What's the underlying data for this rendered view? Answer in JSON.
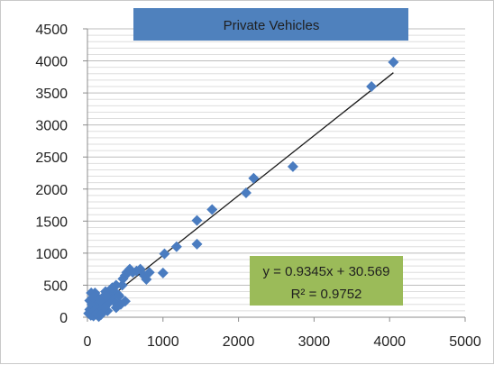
{
  "chart_data": {
    "type": "scatter",
    "title": "Private Vehicles",
    "xlabel": "",
    "ylabel": "",
    "xlim": [
      0,
      5000
    ],
    "ylim": [
      0,
      4500
    ],
    "x_ticks": [
      0,
      1000,
      2000,
      3000,
      4000,
      5000
    ],
    "y_ticks": [
      0,
      500,
      1000,
      1500,
      2000,
      2500,
      3000,
      3500,
      4000,
      4500
    ],
    "grid": "horizontal",
    "marker": "diamond",
    "marker_color": "#4a7cc0",
    "series": [
      {
        "x": [
          15,
          30,
          45,
          60,
          75,
          90,
          110,
          130,
          150,
          170,
          195,
          215,
          240,
          265,
          290,
          320,
          350,
          380,
          410,
          440,
          470,
          500,
          520,
          560,
          600,
          650,
          700,
          750,
          780,
          820,
          100,
          150,
          200,
          260,
          300,
          340,
          380,
          420,
          460,
          500,
          50,
          80,
          120,
          180,
          230,
          30,
          70,
          160,
          250,
          330,
          1000,
          1020,
          1180,
          1450,
          1450,
          1650,
          2100,
          2200,
          2720,
          3760,
          4050
        ],
        "y": [
          60,
          120,
          30,
          200,
          90,
          350,
          50,
          150,
          250,
          80,
          300,
          200,
          400,
          100,
          330,
          450,
          250,
          500,
          350,
          200,
          600,
          650,
          700,
          750,
          700,
          720,
          750,
          650,
          590,
          700,
          380,
          10,
          120,
          200,
          300,
          420,
          150,
          330,
          500,
          250,
          380,
          20,
          60,
          40,
          160,
          260,
          310,
          280,
          320,
          460,
          690,
          990,
          1100,
          1140,
          1510,
          1680,
          1940,
          2170,
          2350,
          3600,
          3980
        ]
      }
    ],
    "trendline": {
      "slope": 0.9345,
      "intercept": 30.569,
      "x_range": [
        0,
        4050
      ],
      "color": "#1a1a1a"
    },
    "equation_lines": [
      "y = 0.9345x + 30.569",
      "R² = 0.9752"
    ],
    "equation_box_color": "#9bbb59",
    "title_box_color": "#4f81bd"
  }
}
